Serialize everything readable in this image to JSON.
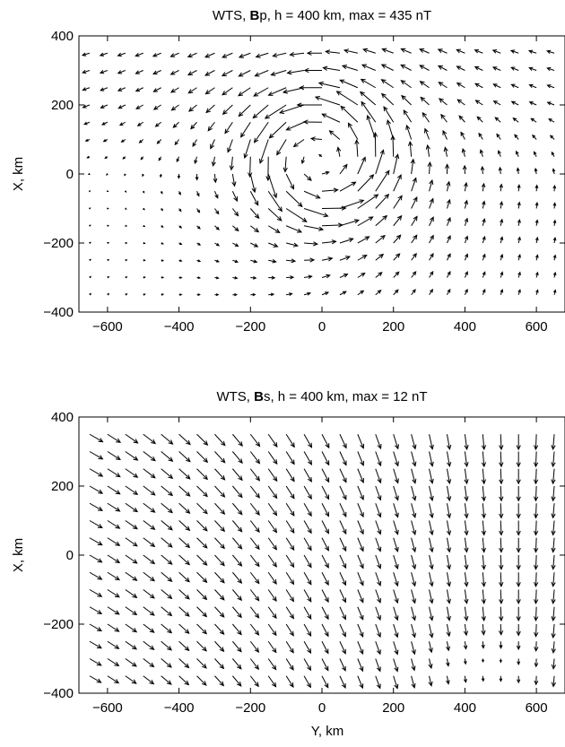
{
  "chart_data": [
    {
      "type": "quiver",
      "title_parts": [
        "WTS, ",
        "B",
        "p, h = 400 km, max = 435 nT"
      ],
      "xlabel": "",
      "ylabel": "X, km",
      "xlim": [
        -680,
        680
      ],
      "ylim": [
        -400,
        400
      ],
      "xticks": [
        "-600",
        "-400",
        "-200",
        "0",
        "200",
        "400",
        "600"
      ],
      "xtick_values": [
        -600,
        -400,
        -200,
        0,
        200,
        400,
        600
      ],
      "yticks": [
        "-400",
        "-200",
        "0",
        "200",
        "400"
      ],
      "ytick_values": [
        -400,
        -200,
        0,
        200,
        400
      ],
      "grid": false,
      "field": "current vortex centered near (Y=0, X=50 km); strongest westward arrows at X≈50–100 km, Y≈-100–0",
      "vortex_center": [
        0,
        50
      ],
      "vortex_radius_km": 170,
      "max_nT": 435
    },
    {
      "type": "quiver",
      "title_parts": [
        "WTS, ",
        "B",
        "s, h = 400 km, max = 12 nT"
      ],
      "xlabel": "Y, km",
      "ylabel": "X, km",
      "xlim": [
        -680,
        680
      ],
      "ylim": [
        -400,
        400
      ],
      "xticks": [
        "-600",
        "-400",
        "-200",
        "0",
        "200",
        "400",
        "600"
      ],
      "xtick_values": [
        -600,
        -400,
        -200,
        0,
        200,
        400,
        600
      ],
      "yticks": [
        "-400",
        "-200",
        "0",
        "200",
        "400"
      ],
      "ytick_values": [
        -400,
        -200,
        0,
        200,
        400
      ],
      "grid": false,
      "field": "arrows point south-east at left, turning southward to the right; nearly zero near Y≈450, X≈-300",
      "max_nT": 12
    }
  ]
}
